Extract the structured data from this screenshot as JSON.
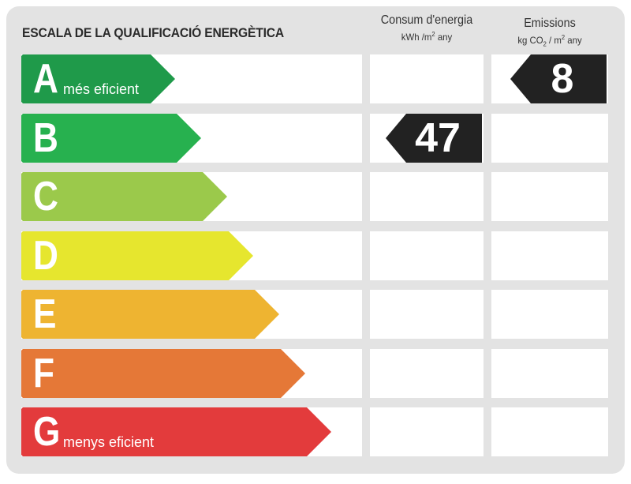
{
  "title": "ESCALA DE LA QUALIFICACIÓ ENERGÈTICA",
  "energy_header": {
    "title": "Consum d'energia",
    "unit_pre": "kWh /m",
    "unit_sup": "2",
    "unit_post": " any"
  },
  "emissions_header": {
    "title": "Emissions",
    "unit_pre": "kg CO",
    "unit_sub": "2",
    "unit_mid": " / m",
    "unit_sup": "2",
    "unit_post": " any"
  },
  "ratings": [
    {
      "letter": "A",
      "caption": "més eficient",
      "color": "#1f9a4a"
    },
    {
      "letter": "B",
      "caption": "",
      "color": "#27b14f"
    },
    {
      "letter": "C",
      "caption": "",
      "color": "#9bc94b"
    },
    {
      "letter": "D",
      "caption": "",
      "color": "#e6e62e"
    },
    {
      "letter": "E",
      "caption": "",
      "color": "#eeb431"
    },
    {
      "letter": "F",
      "caption": "",
      "color": "#e57837"
    },
    {
      "letter": "G",
      "caption": "menys eficient",
      "color": "#e33b3c"
    }
  ],
  "energy_value": {
    "value": "47",
    "rating": "B"
  },
  "emissions_value": {
    "value": "8",
    "rating": "A"
  },
  "badge_color": "#222222"
}
